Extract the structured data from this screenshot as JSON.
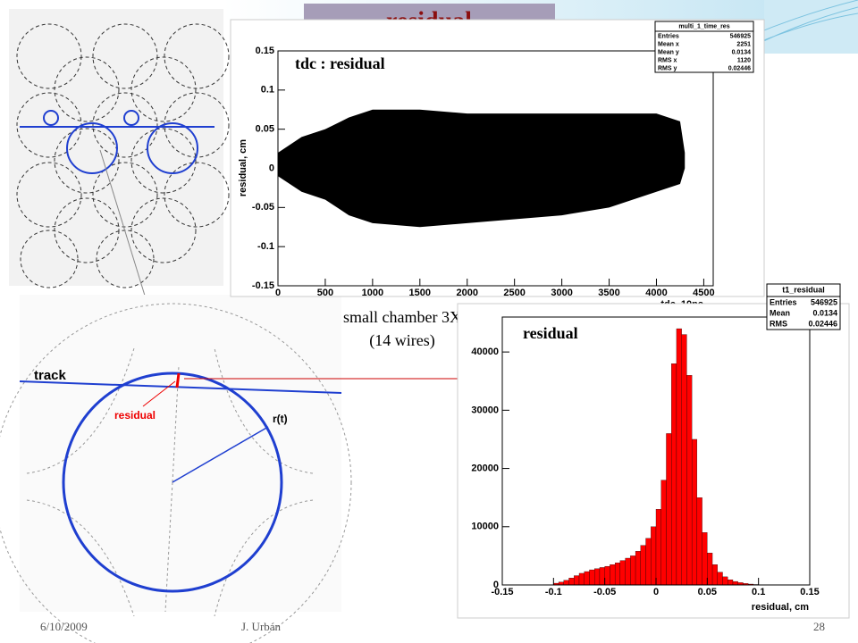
{
  "slide": {
    "title": "residual",
    "caption": [
      "small chamber 3X",
      "(14 wires)"
    ],
    "diagram": {
      "track": "track",
      "residual": "residual",
      "radius": "r(t)"
    },
    "footer": {
      "date": "6/10/2009",
      "author": "J. Urbán",
      "page": "28"
    }
  },
  "stats": [
    {
      "name": "multi_1_time_res",
      "rows": [
        [
          "Entries",
          "546925"
        ],
        [
          "Mean x",
          "2251"
        ],
        [
          "Mean y",
          "0.0134"
        ],
        [
          "RMS x",
          "1120"
        ],
        [
          "RMS y",
          "0.02446"
        ]
      ]
    },
    {
      "name": "t1_residual",
      "rows": [
        [
          "Entries",
          "546925"
        ],
        [
          "Mean",
          "0.0134"
        ],
        [
          "RMS",
          "0.02446"
        ]
      ]
    }
  ],
  "chart_data": [
    {
      "type": "band",
      "title": "tdc : residual",
      "x_label": "tdc, 10ns",
      "y_label": "residual, cm",
      "color": "#000000",
      "x": [
        0,
        250,
        500,
        750,
        1000,
        1500,
        2000,
        2500,
        3000,
        3500,
        4000,
        4250,
        4300
      ],
      "upper": [
        0.02,
        0.04,
        0.05,
        0.065,
        0.075,
        0.075,
        0.07,
        0.07,
        0.07,
        0.07,
        0.07,
        0.06,
        0.02
      ],
      "lower": [
        -0.01,
        -0.03,
        -0.04,
        -0.06,
        -0.07,
        -0.075,
        -0.07,
        -0.065,
        -0.06,
        -0.05,
        -0.03,
        -0.02,
        0
      ],
      "xlim": [
        0,
        4600
      ],
      "xticks": [
        0,
        500,
        1000,
        1500,
        2000,
        2500,
        3000,
        3500,
        4000,
        4500
      ],
      "ylim": [
        -0.15,
        0.15
      ],
      "yticks": [
        -0.15,
        -0.1,
        -0.05,
        0,
        0.05,
        0.1,
        0.15
      ]
    },
    {
      "type": "histogram",
      "title": "residual",
      "x_label": "residual, cm",
      "color": "#ff0000",
      "bins": [
        -0.15,
        -0.145,
        -0.14,
        -0.135,
        -0.13,
        -0.125,
        -0.12,
        -0.115,
        -0.11,
        -0.105,
        -0.1,
        -0.095,
        -0.09,
        -0.085,
        -0.08,
        -0.075,
        -0.07,
        -0.065,
        -0.06,
        -0.055,
        -0.05,
        -0.045,
        -0.04,
        -0.035,
        -0.03,
        -0.025,
        -0.02,
        -0.015,
        -0.01,
        -0.005,
        0,
        0.005,
        0.01,
        0.015,
        0.02,
        0.025,
        0.03,
        0.035,
        0.04,
        0.045,
        0.05,
        0.055,
        0.06,
        0.065,
        0.07,
        0.075,
        0.08,
        0.085,
        0.09,
        0.095,
        0.1,
        0.105,
        0.11,
        0.115,
        0.12,
        0.125,
        0.13,
        0.135,
        0.14,
        0.145,
        0.15
      ],
      "counts": [
        0,
        0,
        0,
        0,
        0,
        0,
        0,
        0,
        0,
        0,
        300,
        500,
        800,
        1200,
        1600,
        2000,
        2300,
        2600,
        2800,
        3000,
        3200,
        3500,
        3800,
        4200,
        4600,
        5000,
        5800,
        6800,
        8000,
        10000,
        13000,
        18000,
        26000,
        38000,
        44000,
        43000,
        36000,
        25000,
        15000,
        9000,
        5500,
        3500,
        2200,
        1400,
        900,
        600,
        400,
        250,
        150,
        80,
        0,
        0,
        0,
        0,
        0,
        0,
        0,
        0,
        0,
        0
      ],
      "xlim": [
        -0.15,
        0.15
      ],
      "xticks": [
        -0.15,
        -0.1,
        -0.05,
        0,
        0.05,
        0.1,
        0.15
      ],
      "ylim": [
        0,
        46000
      ],
      "yticks": [
        0,
        10000,
        20000,
        30000,
        40000
      ]
    }
  ]
}
